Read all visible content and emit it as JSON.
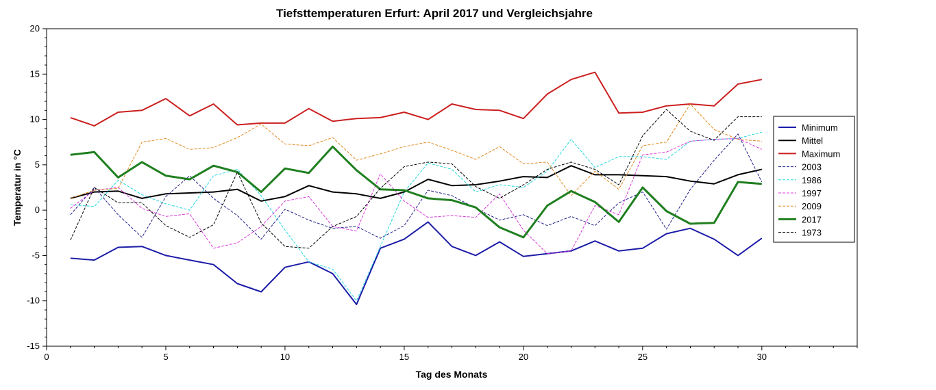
{
  "chart_data": {
    "type": "line",
    "title": "Tiefsttemperaturen Erfurt: April 2017 und Vergleichsjahre",
    "xlabel": "Tag des Monats",
    "ylabel": "Temperatur in °C",
    "xlim": [
      0,
      34
    ],
    "ylim": [
      -15,
      20
    ],
    "xticks": [
      0,
      5,
      10,
      15,
      20,
      25,
      30
    ],
    "yticks": [
      -15,
      -10,
      -5,
      0,
      5,
      10,
      15,
      20
    ],
    "grid": false,
    "legend_position": "right",
    "x": [
      1,
      2,
      3,
      4,
      5,
      6,
      7,
      8,
      9,
      10,
      11,
      12,
      13,
      14,
      15,
      16,
      17,
      18,
      19,
      20,
      21,
      22,
      23,
      24,
      25,
      26,
      27,
      28,
      29,
      30
    ],
    "series": [
      {
        "name": "Minimum",
        "color": "#1c1ca8",
        "style": "solid",
        "width": 2,
        "values": [
          -5.3,
          -5.5,
          -4.1,
          -4.0,
          -5.0,
          -5.5,
          -6.0,
          -8.1,
          -9.0,
          -6.3,
          -5.7,
          -7.0,
          -10.4,
          -4.2,
          -3.2,
          -1.3,
          -4.0,
          -5.0,
          -3.5,
          -5.1,
          -4.8,
          -4.5,
          -3.4,
          -4.5,
          -4.2,
          -2.6,
          -2.0,
          -3.2,
          -5.0,
          -3.1
        ]
      },
      {
        "name": "Mittel",
        "color": "#000000",
        "style": "solid",
        "width": 2,
        "values": [
          1.3,
          2.0,
          2.1,
          1.3,
          1.8,
          1.9,
          2.0,
          2.3,
          1.0,
          1.5,
          2.7,
          2.0,
          1.8,
          1.3,
          2.0,
          3.4,
          2.7,
          2.8,
          3.2,
          3.7,
          3.6,
          4.9,
          3.9,
          3.9,
          3.8,
          3.7,
          3.2,
          2.9,
          3.9,
          4.5
        ]
      },
      {
        "name": "Maximum",
        "color": "#cc1f1f",
        "style": "solid",
        "width": 2,
        "values": [
          10.2,
          9.3,
          10.8,
          11.0,
          12.3,
          10.4,
          11.7,
          9.4,
          9.6,
          9.6,
          11.2,
          9.8,
          10.1,
          10.2,
          10.8,
          10.0,
          11.7,
          11.1,
          11.0,
          10.1,
          12.8,
          14.4,
          15.2,
          10.7,
          10.8,
          11.5,
          11.7,
          11.5,
          13.9,
          14.4
        ]
      },
      {
        "name": "2003",
        "color": "#20208a",
        "style": "dashed",
        "width": 1,
        "values": [
          -0.5,
          2.5,
          -0.5,
          -3.0,
          1.5,
          3.8,
          1.3,
          -0.6,
          -3.2,
          0.1,
          -1.1,
          -2.0,
          -1.8,
          -3.1,
          -1.7,
          2.2,
          1.6,
          0.2,
          -1.1,
          -0.5,
          -1.7,
          -0.7,
          -1.7,
          0.8,
          2.0,
          -2.1,
          2.3,
          5.5,
          8.4,
          3.1
        ]
      },
      {
        "name": "1986",
        "color": "#22d8e0",
        "style": "dashed",
        "width": 1,
        "values": [
          0.6,
          0.4,
          3.3,
          1.7,
          0.7,
          0.0,
          3.8,
          4.5,
          1.6,
          -2.2,
          -5.7,
          -6.5,
          -10.0,
          -4.0,
          2.0,
          5.2,
          4.5,
          2.0,
          2.8,
          2.5,
          4.3,
          7.8,
          4.7,
          5.9,
          5.9,
          5.6,
          7.6,
          7.8,
          7.9,
          8.6
        ]
      },
      {
        "name": "1997",
        "color": "#d838d8",
        "style": "dashed",
        "width": 1,
        "values": [
          0.2,
          2.2,
          2.5,
          0.2,
          -0.7,
          -0.4,
          -4.2,
          -3.6,
          -1.8,
          1.0,
          1.5,
          -1.8,
          -2.3,
          4.0,
          1.0,
          -0.8,
          -0.6,
          -0.8,
          1.8,
          -2.2,
          -4.8,
          -4.5,
          0.5,
          -0.5,
          6.1,
          6.4,
          7.6,
          7.8,
          7.9,
          6.7
        ]
      },
      {
        "name": "2009",
        "color": "#e08a20",
        "style": "dashed",
        "width": 1,
        "values": [
          1.3,
          2.2,
          2.4,
          7.5,
          7.9,
          6.7,
          6.9,
          8.0,
          9.5,
          7.3,
          7.1,
          8.0,
          5.5,
          6.2,
          7.0,
          7.5,
          6.6,
          5.6,
          7.0,
          5.1,
          5.3,
          1.6,
          4.3,
          2.3,
          7.1,
          7.5,
          11.7,
          8.9,
          7.8,
          7.6
        ]
      },
      {
        "name": "2017",
        "color": "#1f7f1f",
        "style": "solid",
        "width": 3,
        "values": [
          6.1,
          6.4,
          3.6,
          5.3,
          3.8,
          3.4,
          4.9,
          4.2,
          2.0,
          4.6,
          4.1,
          7.0,
          4.4,
          2.3,
          2.2,
          1.3,
          1.1,
          0.3,
          -1.9,
          -3.0,
          0.5,
          2.1,
          0.9,
          -1.3,
          2.5,
          -0.1,
          -1.5,
          -1.4,
          3.1,
          2.9
        ]
      },
      {
        "name": "1973",
        "color": "#000000",
        "style": "dashed",
        "width": 1,
        "values": [
          -3.3,
          2.5,
          0.8,
          0.8,
          -1.7,
          -3.0,
          -1.6,
          4.2,
          -1.4,
          -4.0,
          -4.2,
          -1.8,
          -0.7,
          2.4,
          4.8,
          5.3,
          5.1,
          2.6,
          1.3,
          2.8,
          4.5,
          5.3,
          4.5,
          2.8,
          8.2,
          11.1,
          8.7,
          7.7,
          10.3,
          10.3
        ]
      }
    ]
  }
}
